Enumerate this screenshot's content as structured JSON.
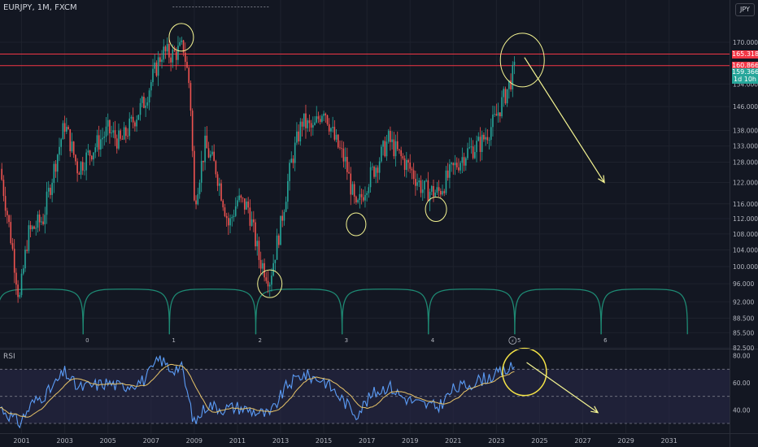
{
  "header": {
    "symbol": "EURJPY, 1M, FXCM",
    "currency": "JPY"
  },
  "rsi_label": "RSI",
  "price_tags": {
    "upper": "165.318",
    "lower": "160.866",
    "last": "159.366",
    "countdown": "1d 10h"
  },
  "cycle_labels": [
    "0",
    "1",
    "2",
    "3",
    "4",
    "5",
    "6"
  ],
  "colors": {
    "up": "#26a69a",
    "down": "#ef5350",
    "rsi": "#5b9cf6",
    "rsi_ma": "#e8c468",
    "annotation": "#f5f592",
    "cycle": "#1e8a74",
    "resistance": "#f23645",
    "rsi_band": "#2a2a4a"
  },
  "chart_data": [
    {
      "type": "candlestick",
      "title": "EURJPY, 1M, FXCM",
      "x_ticks": [
        "2001",
        "2003",
        "2005",
        "2007",
        "2009",
        "2011",
        "2013",
        "2015",
        "2017",
        "2019",
        "2021",
        "2023",
        "2025",
        "2027",
        "2029",
        "2031"
      ],
      "x_range": [
        2000.0,
        2033.8
      ],
      "y_scale": "log",
      "y_ticks": [
        82.5,
        85.5,
        88.5,
        92.0,
        96.0,
        100.0,
        104.0,
        108.0,
        112.0,
        116.0,
        122.0,
        128.0,
        133.0,
        138.0,
        146.0,
        154.0,
        170.0
      ],
      "y_range": [
        82.5,
        185.0
      ],
      "anchors": [
        [
          2000.0,
          126.0
        ],
        [
          2000.9,
          92.0
        ],
        [
          2001.3,
          108.0
        ],
        [
          2002.0,
          112.0
        ],
        [
          2003.0,
          140.0
        ],
        [
          2003.6,
          126.0
        ],
        [
          2005.0,
          138.0
        ],
        [
          2005.6,
          134.0
        ],
        [
          2006.7,
          148.0
        ],
        [
          2007.5,
          166.0
        ],
        [
          2008.0,
          165.0
        ],
        [
          2008.5,
          168.0
        ],
        [
          2008.8,
          152.0
        ],
        [
          2009.0,
          116.0
        ],
        [
          2009.5,
          133.0
        ],
        [
          2010.0,
          126.0
        ],
        [
          2010.6,
          110.0
        ],
        [
          2011.0,
          117.0
        ],
        [
          2011.5,
          115.0
        ],
        [
          2012.0,
          102.0
        ],
        [
          2012.5,
          97.0
        ],
        [
          2013.0,
          110.0
        ],
        [
          2013.5,
          128.0
        ],
        [
          2014.0,
          141.0
        ],
        [
          2014.5,
          138.0
        ],
        [
          2015.0,
          146.0
        ],
        [
          2015.5,
          135.0
        ],
        [
          2016.0,
          128.0
        ],
        [
          2016.5,
          114.0
        ],
        [
          2017.0,
          122.0
        ],
        [
          2017.5,
          128.0
        ],
        [
          2018.0,
          135.0
        ],
        [
          2018.5,
          130.0
        ],
        [
          2019.0,
          126.0
        ],
        [
          2019.6,
          120.0
        ],
        [
          2020.3,
          119.0
        ],
        [
          2021.0,
          126.0
        ],
        [
          2021.6,
          131.0
        ],
        [
          2022.3,
          134.0
        ],
        [
          2022.9,
          141.0
        ],
        [
          2023.4,
          150.0
        ],
        [
          2023.85,
          159.4
        ]
      ],
      "resistance": [
        165.318,
        160.866
      ],
      "last_price": 159.366,
      "cycle_arcs": [
        1999.85,
        2003.85,
        2007.85,
        2011.85,
        2015.85,
        2019.85,
        2023.85,
        2027.85,
        2031.85
      ],
      "circled": [
        [
          2008.4,
          172.0
        ],
        [
          2012.5,
          96.0
        ],
        [
          2016.5,
          110.5
        ],
        [
          2020.2,
          114.5
        ],
        [
          2024.2,
          163.0
        ]
      ],
      "forecast_arrow": {
        "from": [
          2024.3,
          164.0
        ],
        "to": [
          2028.0,
          122.0
        ]
      }
    },
    {
      "type": "line",
      "title": "RSI",
      "series": [],
      "y_ticks": [
        40.0,
        60.0,
        80.0
      ],
      "y_range": [
        24.0,
        84.0
      ],
      "bands": [
        30.0,
        50.0,
        70.0
      ],
      "anchors": [
        [
          2000.0,
          42.0
        ],
        [
          2000.9,
          30.0
        ],
        [
          2001.5,
          45.0
        ],
        [
          2002.3,
          54.0
        ],
        [
          2003.0,
          68.0
        ],
        [
          2003.6,
          56.0
        ],
        [
          2005.0,
          60.0
        ],
        [
          2005.6,
          57.0
        ],
        [
          2006.7,
          62.0
        ],
        [
          2007.4,
          78.0
        ],
        [
          2007.9,
          70.0
        ],
        [
          2008.4,
          72.0
        ],
        [
          2009.0,
          30.0
        ],
        [
          2009.6,
          44.0
        ],
        [
          2010.3,
          41.0
        ],
        [
          2011.0,
          42.0
        ],
        [
          2012.0,
          38.0
        ],
        [
          2012.5,
          36.0
        ],
        [
          2013.3,
          58.0
        ],
        [
          2014.0,
          66.0
        ],
        [
          2015.0,
          62.0
        ],
        [
          2015.6,
          52.0
        ],
        [
          2016.5,
          37.0
        ],
        [
          2017.3,
          52.0
        ],
        [
          2018.0,
          58.0
        ],
        [
          2018.6,
          50.0
        ],
        [
          2019.3,
          45.0
        ],
        [
          2020.3,
          42.0
        ],
        [
          2021.0,
          55.0
        ],
        [
          2021.6,
          58.0
        ],
        [
          2022.2,
          62.0
        ],
        [
          2023.0,
          66.0
        ],
        [
          2023.85,
          72.0
        ]
      ],
      "annotation_circle": [
        2024.3,
        68.0
      ],
      "forecast_arrow": {
        "from": [
          2024.4,
          75.0
        ],
        "to": [
          2027.7,
          38.0
        ]
      }
    }
  ]
}
